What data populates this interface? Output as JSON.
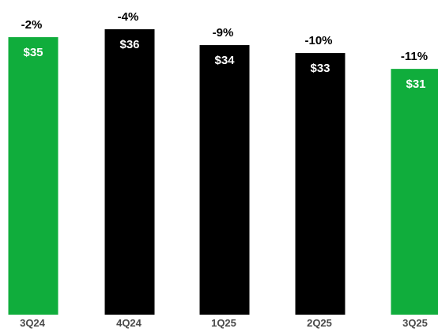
{
  "chart_data": {
    "type": "bar",
    "categories": [
      "3Q24",
      "4Q24",
      "1Q25",
      "2Q25",
      "3Q25"
    ],
    "values": [
      35,
      36,
      34,
      33,
      31
    ],
    "value_labels": [
      "$35",
      "$36",
      "$34",
      "$33",
      "$31"
    ],
    "change_labels": [
      "-2%",
      "-4%",
      "-9%",
      "-10%",
      "-11%"
    ],
    "bar_colors": [
      "#10ad3c",
      "#000000",
      "#000000",
      "#000000",
      "#10ad3c"
    ],
    "title": "",
    "xlabel": "",
    "ylabel": "",
    "ylim": [
      0,
      36
    ],
    "grid": false,
    "legend": "none"
  }
}
